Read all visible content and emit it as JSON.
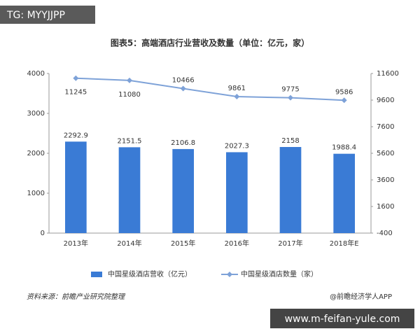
{
  "watermark_top": "TG: MYYJJPP",
  "watermark_bottom": "www.m-feifan-yule.com",
  "source": "资料来源：前瞻产业研究院整理",
  "credit": "@前瞻经济学人APP",
  "chart_data": {
    "type": "bar",
    "title": "图表5：高端酒店行业营收及数量（单位：亿元，家）",
    "categories": [
      "2013年",
      "2014年",
      "2015年",
      "2016年",
      "2017年",
      "2018年E"
    ],
    "series": [
      {
        "name": "中国星级酒店营收（亿元）",
        "type": "bar",
        "color": "#3a7bd5",
        "values": [
          2292.9,
          2151.5,
          2106.8,
          2027.3,
          2158,
          1988.4
        ]
      },
      {
        "name": "中国星级酒店数量（家）",
        "type": "line",
        "axis": "y2",
        "color": "#7ea2d8",
        "values": [
          11245,
          11080,
          10466,
          9861,
          9775,
          9586
        ]
      }
    ],
    "ylim": [
      0,
      4000
    ],
    "yticks": [
      0,
      1000,
      2000,
      3000,
      4000
    ],
    "y2lim": [
      -400,
      11600
    ],
    "y2ticks": [
      -400,
      1600,
      3600,
      5600,
      7600,
      9600,
      11600
    ],
    "grid": false,
    "legend": "bottom"
  }
}
